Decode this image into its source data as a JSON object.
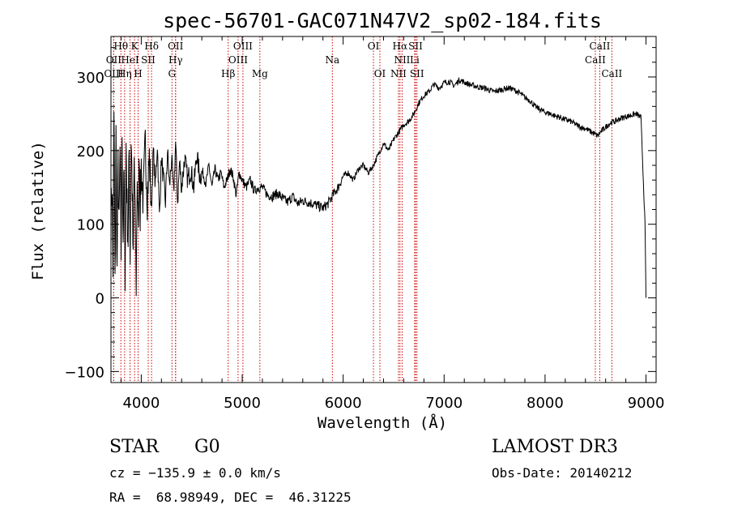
{
  "chart_data": {
    "type": "line",
    "title": "spec-56701-GAC071N47V2_sp02-184.fits",
    "xlabel": "Wavelength (Å)",
    "ylabel": "Flux (relative)",
    "xlim": [
      3700,
      9100
    ],
    "ylim": [
      -115,
      355
    ],
    "x_ticks": [
      4000,
      5000,
      6000,
      7000,
      8000,
      9000
    ],
    "y_ticks": [
      -100,
      0,
      100,
      200,
      300
    ],
    "series": [
      {
        "name": "flux",
        "x": [
          3700,
          3710,
          3720,
          3730,
          3740,
          3750,
          3760,
          3770,
          3780,
          3790,
          3800,
          3810,
          3820,
          3830,
          3840,
          3850,
          3860,
          3870,
          3880,
          3890,
          3900,
          3910,
          3920,
          3930,
          3940,
          3950,
          3960,
          3970,
          3980,
          3990,
          4000,
          4020,
          4040,
          4060,
          4080,
          4100,
          4120,
          4140,
          4160,
          4180,
          4200,
          4220,
          4240,
          4260,
          4280,
          4300,
          4320,
          4340,
          4360,
          4380,
          4400,
          4430,
          4460,
          4490,
          4520,
          4550,
          4580,
          4610,
          4640,
          4670,
          4700,
          4730,
          4760,
          4790,
          4820,
          4850,
          4880,
          4910,
          4940,
          4970,
          5000,
          5040,
          5080,
          5120,
          5160,
          5200,
          5250,
          5300,
          5350,
          5400,
          5450,
          5500,
          5550,
          5600,
          5650,
          5700,
          5750,
          5800,
          5850,
          5900,
          5950,
          6000,
          6050,
          6100,
          6150,
          6200,
          6250,
          6300,
          6350,
          6400,
          6450,
          6500,
          6550,
          6600,
          6650,
          6700,
          6750,
          6800,
          6850,
          6900,
          6950,
          7000,
          7050,
          7100,
          7150,
          7200,
          7250,
          7300,
          7350,
          7400,
          7450,
          7500,
          7550,
          7600,
          7650,
          7700,
          7750,
          7800,
          7850,
          7900,
          7950,
          8000,
          8050,
          8100,
          8150,
          8200,
          8250,
          8300,
          8350,
          8400,
          8450,
          8500,
          8520,
          8550,
          8600,
          8650,
          8700,
          8750,
          8800,
          8850,
          8900,
          8950,
          8990,
          9000
        ],
        "y": [
          100,
          160,
          40,
          250,
          10,
          220,
          30,
          180,
          90,
          200,
          60,
          230,
          80,
          170,
          40,
          210,
          120,
          80,
          200,
          60,
          220,
          150,
          40,
          190,
          100,
          20,
          170,
          80,
          210,
          120,
          180,
          130,
          210,
          140,
          190,
          120,
          200,
          150,
          210,
          110,
          190,
          160,
          130,
          200,
          150,
          190,
          140,
          210,
          130,
          185,
          150,
          190,
          160,
          175,
          150,
          195,
          165,
          170,
          155,
          180,
          150,
          175,
          160,
          170,
          150,
          160,
          175,
          165,
          140,
          170,
          160,
          150,
          160,
          145,
          150,
          150,
          140,
          138,
          142,
          135,
          130,
          138,
          128,
          132,
          130,
          128,
          125,
          122,
          128,
          140,
          150,
          165,
          170,
          160,
          175,
          180,
          170,
          180,
          195,
          210,
          200,
          215,
          225,
          235,
          240,
          250,
          265,
          275,
          280,
          290,
          285,
          292,
          294,
          288,
          296,
          293,
          290,
          288,
          286,
          285,
          282,
          280,
          282,
          284,
          285,
          282,
          278,
          272,
          268,
          260,
          256,
          252,
          250,
          247,
          245,
          242,
          240,
          236,
          232,
          230,
          226,
          222,
          220,
          225,
          232,
          238,
          240,
          244,
          246,
          248,
          250,
          245,
          100,
          0
        ]
      }
    ],
    "emission_lines": [
      {
        "label": "Hθ",
        "x": 3798,
        "row": 0
      },
      {
        "label": "K",
        "x": 3934,
        "row": 0
      },
      {
        "label": "Hδ",
        "x": 4102,
        "row": 0
      },
      {
        "label": "OII",
        "x": 4340,
        "row": 0
      },
      {
        "label": "OIII",
        "x": 5007,
        "row": 0
      },
      {
        "label": "OI",
        "x": 6300,
        "row": 0
      },
      {
        "label": "Hα",
        "x": 6563,
        "row": 0
      },
      {
        "label": "SII",
        "x": 6717,
        "row": 0
      },
      {
        "label": "CaII",
        "x": 8542,
        "row": 0
      },
      {
        "label": "OII",
        "x": 3727,
        "row": 1
      },
      {
        "label": "HeI",
        "x": 3889,
        "row": 1
      },
      {
        "label": "SII",
        "x": 4069,
        "row": 1
      },
      {
        "label": "Hγ",
        "x": 4340,
        "row": 1
      },
      {
        "label": "OIII",
        "x": 4959,
        "row": 1
      },
      {
        "label": "Na",
        "x": 5893,
        "row": 1
      },
      {
        "label": "NII",
        "x": 6584,
        "row": 1
      },
      {
        "label": "Li",
        "x": 6708,
        "row": 1
      },
      {
        "label": "CaII",
        "x": 8498,
        "row": 1
      },
      {
        "label": "OIII",
        "x": 3727,
        "row": 2
      },
      {
        "label": "Hη",
        "x": 3835,
        "row": 2
      },
      {
        "label": "H",
        "x": 3969,
        "row": 2
      },
      {
        "label": "G",
        "x": 4304,
        "row": 2
      },
      {
        "label": "Hβ",
        "x": 4861,
        "row": 2
      },
      {
        "label": "Mg",
        "x": 5175,
        "row": 2
      },
      {
        "label": "OI",
        "x": 6364,
        "row": 2
      },
      {
        "label": "NII",
        "x": 6548,
        "row": 2
      },
      {
        "label": "SII",
        "x": 6731,
        "row": 2
      },
      {
        "label": "CaII",
        "x": 8662,
        "row": 2
      }
    ]
  },
  "info": {
    "object_class": "STAR",
    "subclass": "G0",
    "survey": "LAMOST DR3",
    "cz": "cz = −135.9 ± 0.0 km/s",
    "obs_date": "Obs-Date: 20140212",
    "coords": "RA =  68.98949, DEC =  46.31225"
  },
  "colors": {
    "line": "#000000",
    "marker_lines": "#cc0000",
    "axes": "#000000"
  }
}
